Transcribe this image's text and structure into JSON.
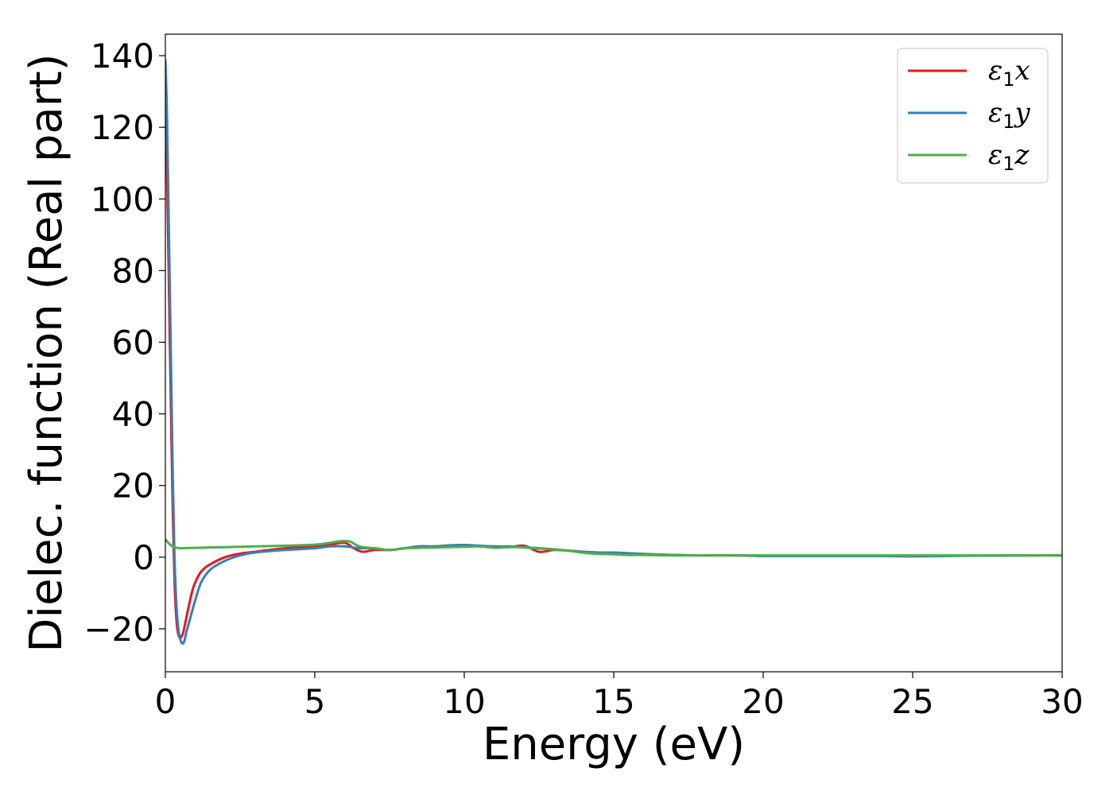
{
  "chart_data": {
    "type": "line",
    "xlabel": "Energy (eV)",
    "ylabel": "Dielec. function (Real part)",
    "xlim": [
      0,
      30
    ],
    "ylim": [
      -32,
      146
    ],
    "xticks": [
      0,
      5,
      10,
      15,
      20,
      25,
      30
    ],
    "yticks": [
      -20,
      0,
      20,
      40,
      60,
      80,
      100,
      120,
      140
    ],
    "xtick_labels": [
      "0",
      "5",
      "10",
      "15",
      "20",
      "25",
      "30"
    ],
    "ytick_labels": [
      "−20",
      "0",
      "20",
      "40",
      "60",
      "80",
      "100",
      "120",
      "140"
    ],
    "grid": false,
    "legend_position": "top-right",
    "series": [
      {
        "name": "ε1x",
        "symbol": "ε",
        "subscript": "1",
        "axis": "x",
        "color": "#e41a1c",
        "x": [
          0,
          0.05,
          0.1,
          0.15,
          0.2,
          0.25,
          0.3,
          0.35,
          0.4,
          0.45,
          0.5,
          0.55,
          0.6,
          0.65,
          0.7,
          0.8,
          0.9,
          1.0,
          1.2,
          1.5,
          2.0,
          2.5,
          3.0,
          4.0,
          5.0,
          5.5,
          6.0,
          6.3,
          6.6,
          7.0,
          7.5,
          8.0,
          8.5,
          9.0,
          9.5,
          10.0,
          10.5,
          11.0,
          11.5,
          12.0,
          12.5,
          13.0,
          13.5,
          14.0,
          14.5,
          15.0,
          15.5,
          16.0,
          17.0,
          18.0,
          19.0,
          20.0,
          21.0,
          22.0,
          23.0,
          24.0,
          25.0,
          26.0,
          27.0,
          28.0,
          29.0,
          30.0
        ],
        "y": [
          130,
          110,
          85,
          60,
          35,
          12,
          -5,
          -15,
          -20,
          -22,
          -22.5,
          -22,
          -21,
          -19,
          -17,
          -13,
          -9.5,
          -7,
          -4,
          -2,
          0,
          1,
          1.5,
          2.5,
          3,
          3.5,
          4,
          2.5,
          1.5,
          2,
          2,
          2.5,
          3,
          3,
          3.2,
          3.3,
          3,
          3,
          2.8,
          3.2,
          1.5,
          2,
          1.8,
          1.5,
          1.2,
          1.2,
          1,
          0.8,
          0.6,
          0.5,
          0.5,
          0.4,
          0.4,
          0.4,
          0.4,
          0.4,
          0.4,
          0.4,
          0.4,
          0.5,
          0.5,
          0.5
        ]
      },
      {
        "name": "ε1y",
        "symbol": "ε",
        "subscript": "1",
        "axis": "y",
        "color": "#377eb8",
        "x": [
          0,
          0.05,
          0.1,
          0.15,
          0.2,
          0.25,
          0.3,
          0.35,
          0.4,
          0.45,
          0.5,
          0.55,
          0.6,
          0.65,
          0.7,
          0.8,
          0.9,
          1.0,
          1.2,
          1.5,
          2.0,
          2.5,
          3.0,
          4.0,
          5.0,
          5.5,
          6.0,
          6.5,
          7.0,
          7.5,
          8.0,
          8.5,
          9.0,
          9.5,
          10.0,
          10.5,
          11.0,
          11.5,
          12.0,
          12.5,
          13.0,
          13.5,
          14.0,
          14.5,
          15.0,
          15.5,
          16.0,
          17.0,
          18.0,
          19.0,
          20.0,
          21.0,
          22.0,
          23.0,
          24.0,
          25.0,
          26.0,
          27.0,
          28.0,
          29.0,
          30.0
        ],
        "y": [
          139,
          125,
          100,
          75,
          48,
          22,
          2,
          -10,
          -17,
          -21,
          -23,
          -24,
          -24,
          -23,
          -21,
          -18,
          -15,
          -12,
          -7,
          -3.5,
          -1,
          0.5,
          1.3,
          2,
          2.5,
          3,
          3,
          2.5,
          2.5,
          2,
          2.5,
          3,
          3,
          3.3,
          3.4,
          3.2,
          3,
          3,
          2.8,
          2.5,
          2.2,
          1.8,
          1.5,
          1.3,
          1.3,
          1.1,
          0.9,
          0.6,
          0.5,
          0.5,
          0.3,
          0.3,
          0.3,
          0.3,
          0.3,
          0.2,
          0.3,
          0.4,
          0.4,
          0.5,
          0.5
        ]
      },
      {
        "name": "ε1z",
        "symbol": "ε",
        "subscript": "1",
        "axis": "z",
        "color": "#4daf4a",
        "x": [
          0,
          0.1,
          0.2,
          0.3,
          0.4,
          0.5,
          1.0,
          2.0,
          3.0,
          4.0,
          5.0,
          5.5,
          5.8,
          6.0,
          6.2,
          6.5,
          7.0,
          7.5,
          8.0,
          8.5,
          9.0,
          9.5,
          10.0,
          10.5,
          11.0,
          11.5,
          12.0,
          12.5,
          13.0,
          13.5,
          14.0,
          14.5,
          15.0,
          15.5,
          16.0,
          17.0,
          18.0,
          19.0,
          20.0,
          21.0,
          22.0,
          23.0,
          24.0,
          25.0,
          26.0,
          27.0,
          28.0,
          29.0,
          30.0
        ],
        "y": [
          5,
          4,
          3.2,
          2.8,
          2.6,
          2.5,
          2.6,
          2.8,
          3,
          3.2,
          3.5,
          4,
          4.4,
          4.5,
          4.3,
          3,
          2.5,
          2,
          2.5,
          2.6,
          2.7,
          2.8,
          2.9,
          3,
          2.6,
          2.8,
          2.7,
          2.4,
          2.2,
          1.8,
          1.2,
          0.9,
          0.8,
          0.6,
          0.6,
          0.5,
          0.5,
          0.5,
          0.5,
          0.5,
          0.5,
          0.5,
          0.5,
          0.5,
          0.5,
          0.5,
          0.5,
          0.5,
          0.5
        ]
      }
    ]
  }
}
